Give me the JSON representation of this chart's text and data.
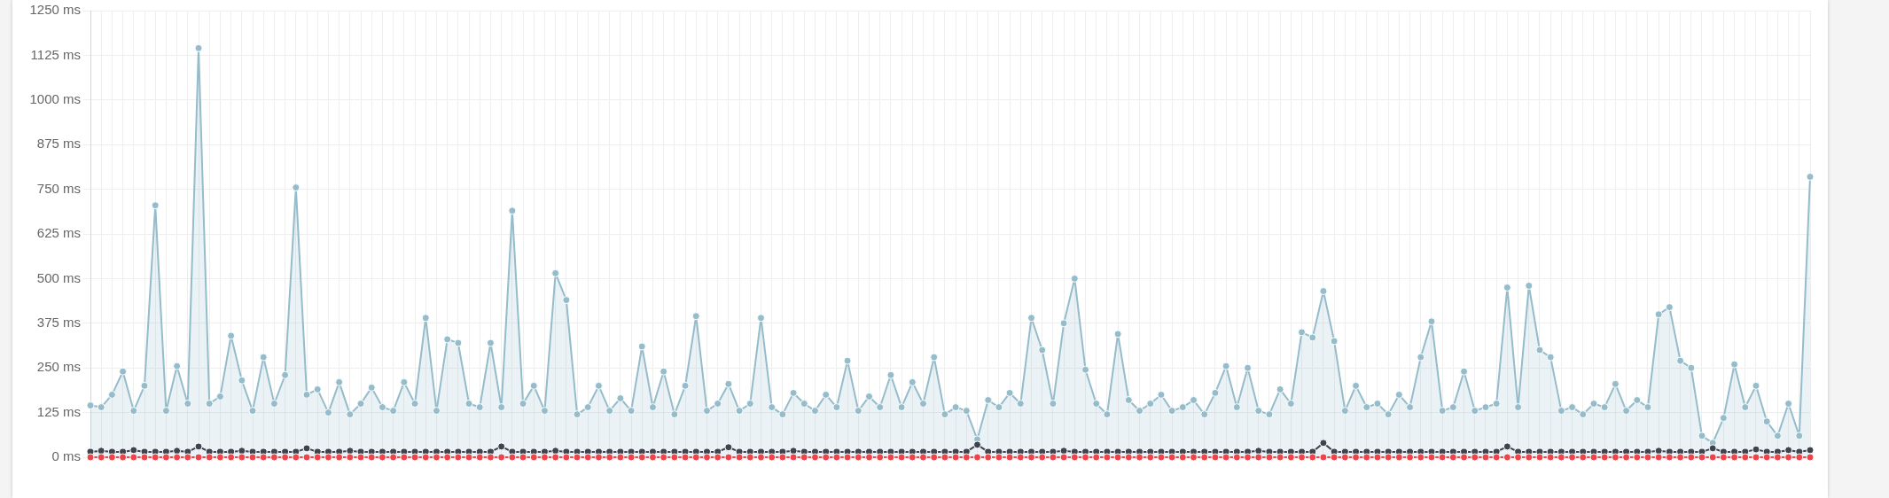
{
  "chart_data": {
    "type": "area",
    "categories": [
      null,
      null,
      null,
      null,
      null,
      null,
      null,
      null,
      null,
      null,
      null,
      null,
      null,
      null,
      null,
      null,
      null,
      null,
      null,
      null,
      null,
      null,
      null,
      null,
      null,
      null,
      null,
      null,
      null,
      null,
      null,
      null,
      null,
      null,
      null,
      null,
      null,
      null,
      null,
      null,
      null,
      null,
      null,
      null,
      null,
      null,
      null,
      null,
      null,
      null,
      null,
      null,
      null,
      null,
      null,
      null,
      null,
      null,
      null,
      null,
      null,
      null,
      null,
      null,
      null,
      null,
      null,
      null,
      null,
      null,
      null,
      null,
      null,
      null,
      null,
      null,
      null,
      null,
      null,
      null,
      null,
      null,
      null,
      null,
      null,
      null,
      null,
      null,
      null,
      null,
      null,
      null,
      null,
      null,
      null,
      null,
      null,
      null,
      null,
      null,
      null,
      null,
      null,
      null,
      null,
      null,
      null,
      null,
      null,
      null,
      null,
      null,
      null,
      null,
      null,
      null,
      null,
      null,
      null,
      null,
      null,
      null,
      null,
      null,
      null,
      null,
      null,
      null,
      null,
      null,
      null,
      null,
      null,
      null,
      null,
      null,
      null,
      null,
      null,
      null,
      null,
      null,
      null,
      null,
      null,
      null,
      null,
      null,
      null,
      null,
      null,
      null,
      null,
      null,
      null,
      null,
      null,
      null,
      null,
      null
    ],
    "series": [
      {
        "color": "#94bccb",
        "values": [
          145,
          140,
          175,
          240,
          130,
          200,
          705,
          130,
          255,
          150,
          1145,
          150,
          170,
          340,
          215,
          130,
          280,
          150,
          230,
          755,
          175,
          190,
          125,
          210,
          120,
          150,
          195,
          140,
          130,
          210,
          150,
          390,
          130,
          330,
          320,
          150,
          140,
          320,
          140,
          690,
          150,
          200,
          130,
          515,
          440,
          120,
          140,
          200,
          130,
          165,
          130,
          310,
          140,
          240,
          120,
          200,
          395,
          130,
          150,
          205,
          130,
          150,
          390,
          140,
          120,
          180,
          150,
          130,
          175,
          140,
          270,
          130,
          170,
          140,
          230,
          140,
          210,
          150,
          280,
          120,
          140,
          130,
          50,
          160,
          140,
          180,
          150,
          390,
          300,
          150,
          375,
          500,
          245,
          150,
          120,
          345,
          160,
          130,
          150,
          175,
          130,
          140,
          160,
          120,
          180,
          255,
          140,
          250,
          130,
          120,
          190,
          150,
          350,
          335,
          465,
          325,
          130,
          200,
          140,
          150,
          120,
          175,
          140,
          280,
          380,
          130,
          140,
          240,
          130,
          140,
          150,
          475,
          140,
          480,
          300,
          280,
          130,
          140,
          120,
          150,
          140,
          205,
          130,
          160,
          140,
          400,
          420,
          270,
          250,
          60,
          40,
          110,
          260,
          140,
          200,
          100,
          60,
          150,
          60,
          785
        ]
      },
      {
        "type": "line",
        "color": "#3d4450",
        "values": [
          15,
          18,
          15,
          15,
          20,
          15,
          15,
          15,
          18,
          15,
          30,
          15,
          15,
          15,
          18,
          15,
          15,
          15,
          15,
          15,
          25,
          15,
          15,
          15,
          18,
          15,
          15,
          15,
          15,
          15,
          15,
          15,
          15,
          15,
          15,
          15,
          15,
          15,
          30,
          15,
          15,
          15,
          15,
          18,
          15,
          15,
          15,
          15,
          15,
          15,
          15,
          15,
          15,
          15,
          15,
          15,
          15,
          15,
          15,
          28,
          15,
          15,
          15,
          15,
          15,
          18,
          15,
          15,
          15,
          15,
          15,
          15,
          15,
          15,
          15,
          15,
          15,
          15,
          15,
          15,
          15,
          15,
          35,
          15,
          15,
          15,
          15,
          15,
          15,
          15,
          18,
          15,
          15,
          15,
          15,
          15,
          15,
          15,
          15,
          15,
          15,
          15,
          15,
          15,
          15,
          15,
          15,
          15,
          18,
          15,
          15,
          15,
          15,
          15,
          40,
          15,
          15,
          15,
          15,
          15,
          15,
          15,
          15,
          15,
          15,
          15,
          15,
          15,
          15,
          15,
          15,
          30,
          15,
          15,
          15,
          15,
          15,
          15,
          15,
          15,
          15,
          15,
          15,
          15,
          15,
          18,
          15,
          15,
          15,
          15,
          25,
          15,
          15,
          15,
          22,
          15,
          15,
          20,
          15,
          20
        ]
      },
      {
        "type": "line",
        "color": "#f0424a",
        "values": [
          0,
          0,
          0,
          0,
          0,
          0,
          0,
          0,
          0,
          0,
          0,
          0,
          0,
          0,
          0,
          0,
          0,
          0,
          0,
          0,
          0,
          0,
          0,
          0,
          0,
          0,
          0,
          0,
          0,
          0,
          0,
          0,
          0,
          0,
          0,
          0,
          0,
          0,
          0,
          0,
          0,
          0,
          0,
          0,
          0,
          0,
          0,
          0,
          0,
          0,
          0,
          0,
          0,
          0,
          0,
          0,
          0,
          0,
          0,
          0,
          0,
          0,
          0,
          0,
          0,
          0,
          0,
          0,
          0,
          0,
          0,
          0,
          0,
          0,
          0,
          0,
          0,
          0,
          0,
          0,
          0,
          0,
          0,
          0,
          0,
          0,
          0,
          0,
          0,
          0,
          0,
          0,
          0,
          0,
          0,
          0,
          0,
          0,
          0,
          0,
          0,
          0,
          0,
          0,
          0,
          0,
          0,
          0,
          0,
          0,
          0,
          0,
          0,
          0,
          0,
          0,
          0,
          0,
          0,
          0,
          0,
          0,
          0,
          0,
          0,
          0,
          0,
          0,
          0,
          0,
          0,
          0,
          0,
          0,
          0,
          0,
          0,
          0,
          0,
          0,
          0,
          0,
          0,
          0,
          0,
          0,
          0,
          0,
          0,
          0,
          0,
          0,
          0,
          0,
          0,
          0,
          0,
          0,
          0,
          0
        ]
      }
    ],
    "ylim": [
      0,
      1250
    ],
    "yticks": [
      {
        "value": 0,
        "label": "0 ms"
      },
      {
        "value": 125,
        "label": "125 ms"
      },
      {
        "value": 250,
        "label": "250 ms"
      },
      {
        "value": 375,
        "label": "375 ms"
      },
      {
        "value": 500,
        "label": "500 ms"
      },
      {
        "value": 625,
        "label": "625 ms"
      },
      {
        "value": 750,
        "label": "750 ms"
      },
      {
        "value": 875,
        "label": "875 ms"
      },
      {
        "value": 1000,
        "label": "1000 ms"
      },
      {
        "value": 1125,
        "label": "1125 ms"
      },
      {
        "value": 1250,
        "label": "1250 ms"
      }
    ],
    "grid": true,
    "marker": "circle",
    "legend": false
  }
}
